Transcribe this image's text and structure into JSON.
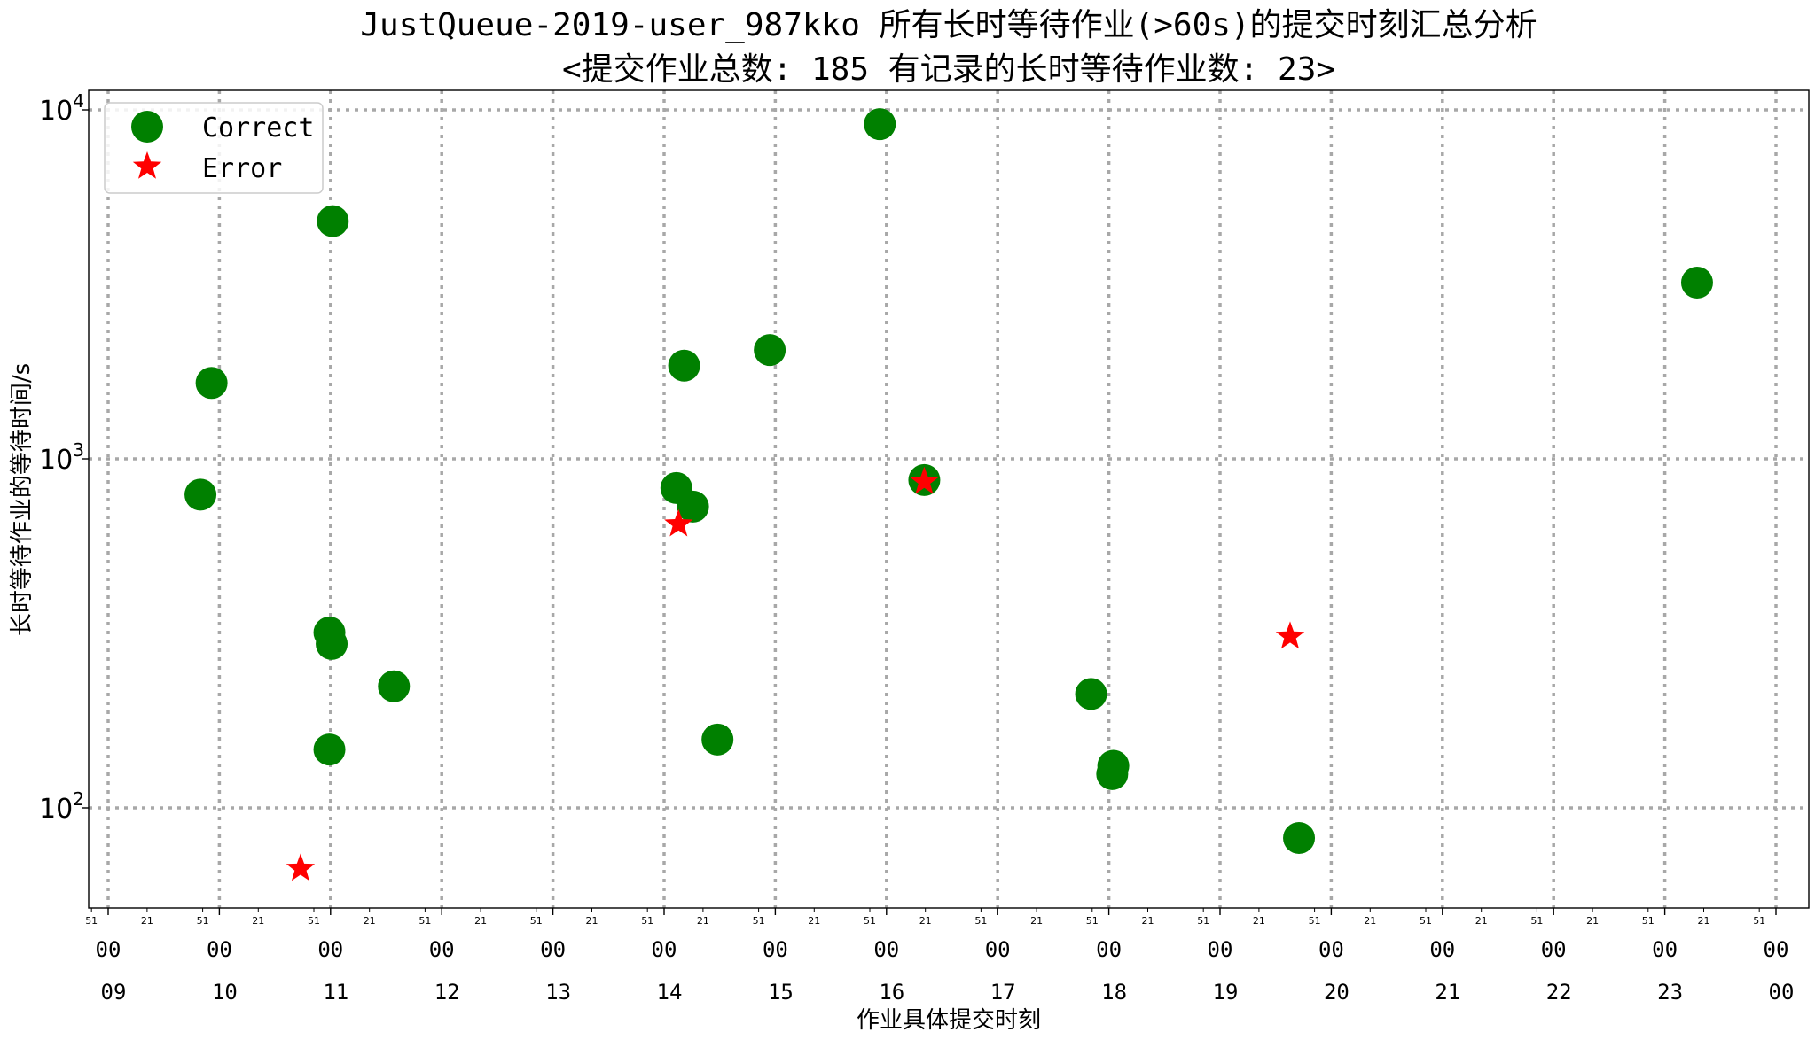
{
  "chart_data": {
    "type": "scatter",
    "title_line1": "JustQueue-2019-user_987kko 所有长时等待作业(>60s)的提交时刻汇总分析",
    "title_line2": "<提交作业总数: 185  有记录的长时等待作业数: 23>",
    "xlabel": "作业具体提交时刻",
    "ylabel": "长时等待作业的等待时间/s",
    "yscale": "log",
    "ylim": [
      55,
      12000
    ],
    "xlim_hours": [
      8.9,
      24.3
    ],
    "y_ticks": [
      {
        "value": 100,
        "base": "10",
        "exp": "2"
      },
      {
        "value": 1000,
        "base": "10",
        "exp": "3"
      },
      {
        "value": 10000,
        "base": "10",
        "exp": "4"
      }
    ],
    "x_major_ticks": [
      {
        "hour": 9,
        "minute": "00",
        "label": "09"
      },
      {
        "hour": 10,
        "minute": "00",
        "label": "10"
      },
      {
        "hour": 11,
        "minute": "00",
        "label": "11"
      },
      {
        "hour": 12,
        "minute": "00",
        "label": "12"
      },
      {
        "hour": 13,
        "minute": "00",
        "label": "13"
      },
      {
        "hour": 14,
        "minute": "00",
        "label": "14"
      },
      {
        "hour": 15,
        "minute": "00",
        "label": "15"
      },
      {
        "hour": 16,
        "minute": "00",
        "label": "16"
      },
      {
        "hour": 17,
        "minute": "00",
        "label": "17"
      },
      {
        "hour": 18,
        "minute": "00",
        "label": "18"
      },
      {
        "hour": 19,
        "minute": "00",
        "label": "19"
      },
      {
        "hour": 20,
        "minute": "00",
        "label": "20"
      },
      {
        "hour": 21,
        "minute": "00",
        "label": "21"
      },
      {
        "hour": 22,
        "minute": "00",
        "label": "22"
      },
      {
        "hour": 23,
        "minute": "00",
        "label": "23"
      },
      {
        "hour": 24,
        "minute": "00",
        "label": "00"
      }
    ],
    "x_minor_ticks": [
      {
        "hour": 8.85,
        "label": "51"
      },
      {
        "hour": 9.35,
        "label": "21"
      },
      {
        "hour": 9.85,
        "label": "51"
      },
      {
        "hour": 10.35,
        "label": "21"
      },
      {
        "hour": 10.85,
        "label": "51"
      },
      {
        "hour": 11.35,
        "label": "21"
      },
      {
        "hour": 11.85,
        "label": "51"
      },
      {
        "hour": 12.35,
        "label": "21"
      },
      {
        "hour": 12.85,
        "label": "51"
      },
      {
        "hour": 13.35,
        "label": "21"
      },
      {
        "hour": 13.85,
        "label": "51"
      },
      {
        "hour": 14.35,
        "label": "21"
      },
      {
        "hour": 14.85,
        "label": "51"
      },
      {
        "hour": 15.35,
        "label": "21"
      },
      {
        "hour": 15.85,
        "label": "51"
      },
      {
        "hour": 16.35,
        "label": "21"
      },
      {
        "hour": 16.85,
        "label": "51"
      },
      {
        "hour": 17.35,
        "label": "21"
      },
      {
        "hour": 17.85,
        "label": "51"
      },
      {
        "hour": 18.35,
        "label": "21"
      },
      {
        "hour": 18.85,
        "label": "51"
      },
      {
        "hour": 19.35,
        "label": "21"
      },
      {
        "hour": 19.85,
        "label": "51"
      },
      {
        "hour": 20.35,
        "label": "21"
      },
      {
        "hour": 20.85,
        "label": "51"
      },
      {
        "hour": 21.35,
        "label": "21"
      },
      {
        "hour": 21.85,
        "label": "51"
      },
      {
        "hour": 22.35,
        "label": "21"
      },
      {
        "hour": 22.85,
        "label": "51"
      },
      {
        "hour": 23.35,
        "label": "21"
      },
      {
        "hour": 23.85,
        "label": "51"
      }
    ],
    "grid": true,
    "legend_position": "top-left",
    "series": [
      {
        "name": "Correct",
        "marker": "circle",
        "color": "#008000",
        "points": [
          {
            "x": 9.83,
            "y": 790
          },
          {
            "x": 9.93,
            "y": 1650
          },
          {
            "x": 10.99,
            "y": 318
          },
          {
            "x": 11.01,
            "y": 295
          },
          {
            "x": 11.02,
            "y": 4800
          },
          {
            "x": 10.99,
            "y": 147
          },
          {
            "x": 11.57,
            "y": 223
          },
          {
            "x": 14.11,
            "y": 825
          },
          {
            "x": 14.18,
            "y": 1850
          },
          {
            "x": 14.26,
            "y": 730
          },
          {
            "x": 14.48,
            "y": 157
          },
          {
            "x": 14.95,
            "y": 2050
          },
          {
            "x": 15.94,
            "y": 9100
          },
          {
            "x": 16.34,
            "y": 870
          },
          {
            "x": 17.84,
            "y": 212
          },
          {
            "x": 18.04,
            "y": 132
          },
          {
            "x": 18.03,
            "y": 125
          },
          {
            "x": 19.71,
            "y": 82
          },
          {
            "x": 23.29,
            "y": 3200
          }
        ]
      },
      {
        "name": "Error",
        "marker": "star",
        "color": "#ff0000",
        "points": [
          {
            "x": 10.73,
            "y": 67
          },
          {
            "x": 14.13,
            "y": 650
          },
          {
            "x": 16.34,
            "y": 860
          },
          {
            "x": 19.63,
            "y": 310
          }
        ]
      }
    ]
  }
}
